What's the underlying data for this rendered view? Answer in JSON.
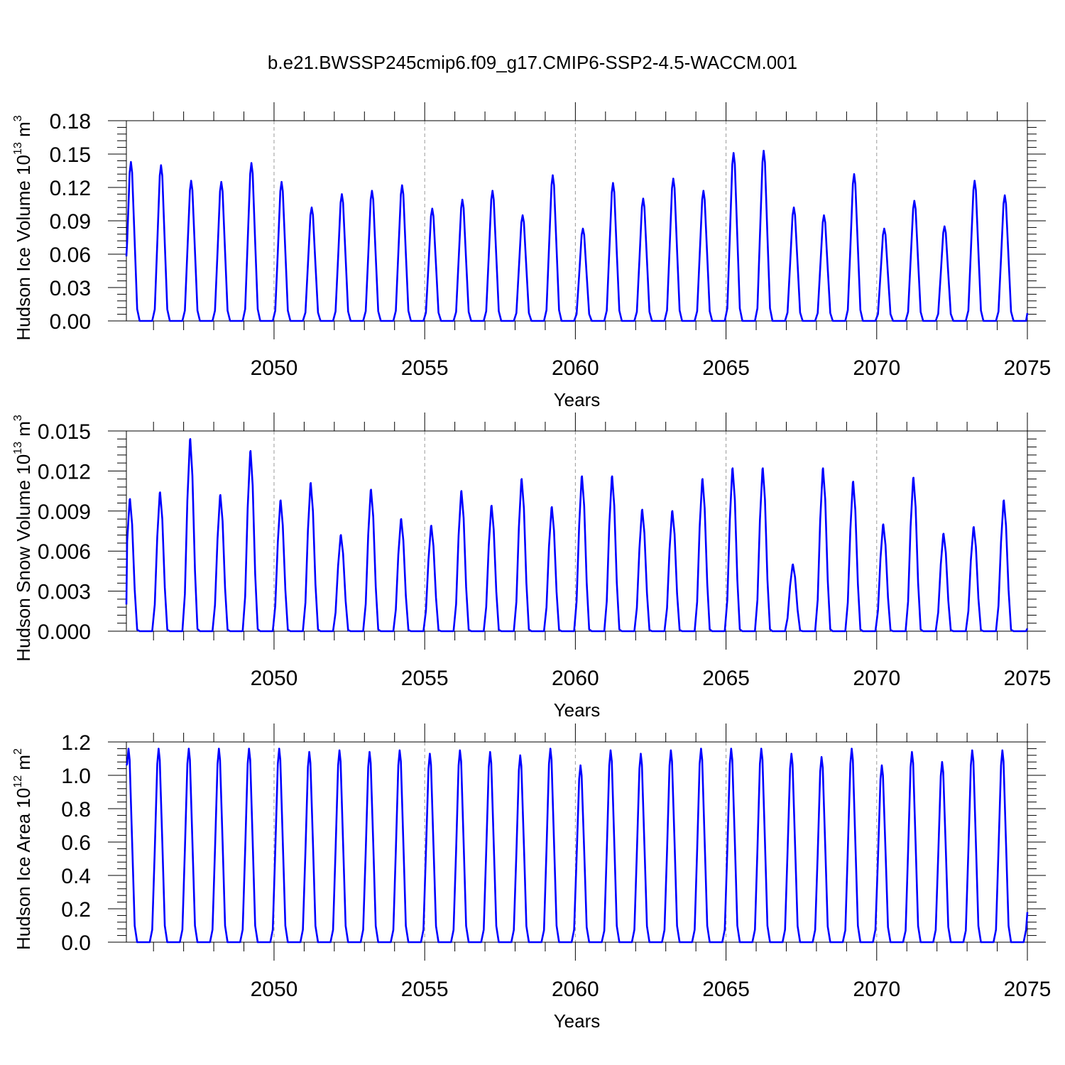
{
  "title": "b.e21.BWSSP245cmip6.f09_g17.CMIP6-SSP2-4.5-WACCM.001",
  "colors": {
    "series": "#0000ff",
    "grid": "#9a9a9a",
    "axes": "#000000"
  },
  "chart_data": [
    {
      "type": "line",
      "xlabel": "Years",
      "ylabel": "Hudson Ice Volume 10",
      "ylabel_exp": "13",
      "ylabel_unit": " m",
      "ylabel_unit_exp": "3",
      "xlim": [
        2045.1,
        2075.0
      ],
      "ylim": [
        0.0,
        0.18
      ],
      "x_ticks": [
        "2050",
        "2055",
        "2060",
        "2065",
        "2070",
        "2075"
      ],
      "y_ticks": [
        "0.00",
        "0.03",
        "0.06",
        "0.09",
        "0.12",
        "0.15",
        "0.18"
      ],
      "grid": "vertical dashed at major x ticks",
      "start_value": 0.058,
      "end_value": 0.007,
      "start_year": 2045,
      "peak_pos": 0.25,
      "peaks": [
        0.143,
        0.14,
        0.126,
        0.125,
        0.142,
        0.125,
        0.102,
        0.114,
        0.117,
        0.122,
        0.101,
        0.109,
        0.117,
        0.095,
        0.131,
        0.083,
        0.124,
        0.11,
        0.128,
        0.117,
        0.151,
        0.153,
        0.102,
        0.095,
        0.132,
        0.083,
        0.108,
        0.085,
        0.126,
        0.113
      ],
      "minima": [
        0.0,
        0.0,
        0.0,
        0.0,
        0.0,
        0.0,
        0.0,
        0.0,
        0.0,
        0.0,
        0.0,
        0.0,
        0.0,
        0.0,
        0.0,
        0.0,
        0.0,
        0.0,
        0.0,
        0.0,
        0.0,
        0.0,
        0.0,
        0.0,
        0.0,
        0.0,
        0.0,
        0.0,
        0.0,
        0.0
      ]
    },
    {
      "type": "line",
      "xlabel": "Years",
      "ylabel": "Hudson Snow Volume 10",
      "ylabel_exp": "13",
      "ylabel_unit": " m",
      "ylabel_unit_exp": "3",
      "xlim": [
        2045.1,
        2075.0
      ],
      "ylim": [
        0.0,
        0.015
      ],
      "x_ticks": [
        "2050",
        "2055",
        "2060",
        "2065",
        "2070",
        "2075"
      ],
      "y_ticks": [
        "0.000",
        "0.003",
        "0.006",
        "0.009",
        "0.012",
        "0.015"
      ],
      "grid": "vertical dashed at major x ticks",
      "start_value": 0.002,
      "end_value": 0.0002,
      "start_year": 2045,
      "peak_pos": 0.22,
      "peaks": [
        0.0099,
        0.0104,
        0.0144,
        0.0102,
        0.0135,
        0.0098,
        0.0111,
        0.0072,
        0.0106,
        0.0084,
        0.0079,
        0.0105,
        0.0094,
        0.0114,
        0.0093,
        0.0116,
        0.0116,
        0.0091,
        0.009,
        0.0114,
        0.0122,
        0.0122,
        0.005,
        0.0122,
        0.0112,
        0.008,
        0.0115,
        0.0073,
        0.0078,
        0.0098
      ],
      "minima": [
        0.0,
        0.0,
        0.0,
        0.0,
        0.0,
        0.0,
        0.0,
        0.0,
        0.0,
        0.0,
        0.0,
        0.0,
        0.0,
        0.0,
        0.0,
        0.0,
        0.0,
        0.0,
        0.0,
        0.0,
        0.0,
        0.0,
        0.0,
        0.0,
        0.0,
        0.0,
        0.0,
        0.0,
        0.0,
        0.0
      ]
    },
    {
      "type": "line",
      "xlabel": "Years",
      "ylabel": "Hudson Ice Area 10",
      "ylabel_exp": "12",
      "ylabel_unit": " m",
      "ylabel_unit_exp": "2",
      "xlim": [
        2045.1,
        2075.0
      ],
      "ylim": [
        0.0,
        1.2
      ],
      "x_ticks": [
        "2050",
        "2055",
        "2060",
        "2065",
        "2070",
        "2075"
      ],
      "y_ticks": [
        "0.0",
        "0.2",
        "0.4",
        "0.6",
        "0.8",
        "1.0",
        "1.2"
      ],
      "grid": "vertical dashed at major x ticks",
      "start_value": 1.06,
      "end_value": 0.18,
      "start_year": 2045,
      "peak_pos": 0.17,
      "peaks": [
        1.16,
        1.16,
        1.16,
        1.16,
        1.16,
        1.16,
        1.14,
        1.15,
        1.14,
        1.15,
        1.13,
        1.15,
        1.14,
        1.12,
        1.16,
        1.06,
        1.15,
        1.13,
        1.15,
        1.16,
        1.16,
        1.16,
        1.13,
        1.11,
        1.16,
        1.06,
        1.14,
        1.08,
        1.15,
        1.15
      ],
      "minima": [
        0.0,
        0.0,
        0.0,
        0.0,
        0.0,
        0.0,
        0.0,
        0.0,
        0.0,
        0.0,
        0.0,
        0.0,
        0.0,
        0.0,
        0.0,
        0.0,
        0.0,
        0.0,
        0.0,
        0.0,
        0.0,
        0.0,
        0.0,
        0.0,
        0.0,
        0.0,
        0.0,
        0.0,
        0.0,
        0.0
      ]
    }
  ]
}
